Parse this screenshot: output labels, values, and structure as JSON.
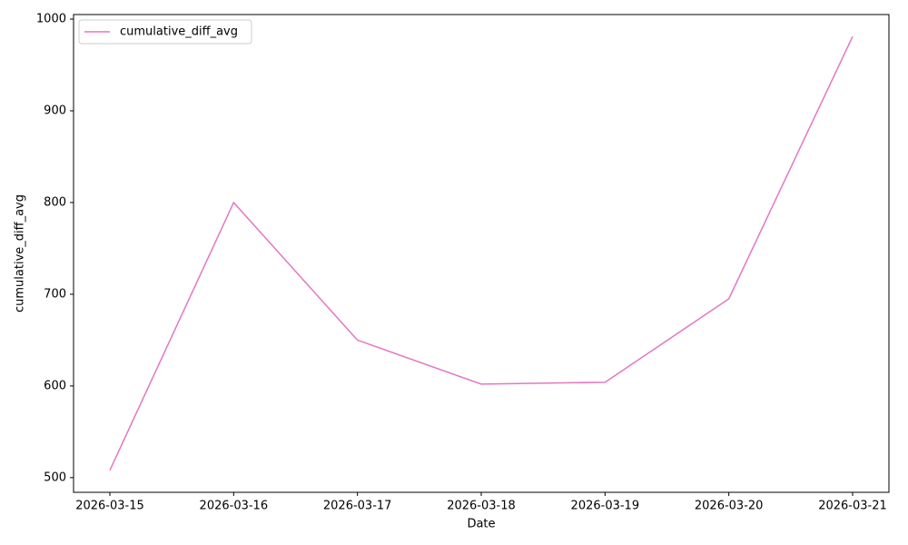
{
  "chart_data": {
    "type": "line",
    "x_label": "Date",
    "y_label": "cumulative_diff_avg",
    "categories": [
      "2026-03-15",
      "2026-03-16",
      "2026-03-17",
      "2026-03-18",
      "2026-03-19",
      "2026-03-20",
      "2026-03-21"
    ],
    "series": [
      {
        "name": "cumulative_diff_avg",
        "color": "#e377c2",
        "values": [
          508,
          800,
          650,
          602,
          604,
          695,
          981
        ]
      }
    ],
    "ylim": [
      484,
      1005
    ],
    "yticks": [
      500,
      600,
      700,
      800,
      900,
      1000
    ],
    "grid": false,
    "legend": "upper left"
  }
}
